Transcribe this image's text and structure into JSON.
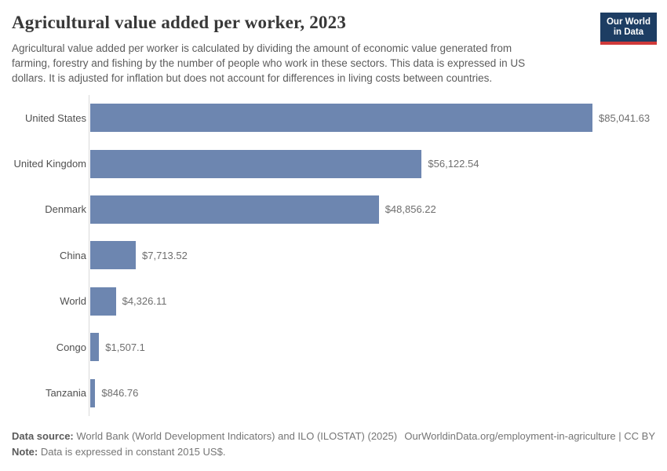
{
  "header": {
    "title": "Agricultural value added per worker, 2023",
    "subtitle_lines": [
      "Agricultural value added per worker is calculated by dividing the amount of economic value generated from",
      "farming, forestry and fishing by the number of people who work in these sectors. This data is expressed in US",
      "dollars. It is adjusted for inflation but does not account for differences in living costs between countries."
    ],
    "logo": {
      "line1": "Our World",
      "line2": "in Data"
    }
  },
  "chart_data": {
    "type": "bar",
    "orientation": "horizontal",
    "title": "Agricultural value added per worker, 2023",
    "categories": [
      "United States",
      "United Kingdom",
      "Denmark",
      "China",
      "World",
      "Congo",
      "Tanzania"
    ],
    "values": [
      85041.63,
      56122.54,
      48856.22,
      7713.52,
      4326.11,
      1507.1,
      846.76
    ],
    "value_labels": [
      "$85,041.63",
      "$56,122.54",
      "$48,856.22",
      "$7,713.52",
      "$4,326.11",
      "$1,507.1",
      "$846.76"
    ],
    "unit": "constant 2015 US$",
    "xlim": [
      0,
      85041.63
    ],
    "grid": false,
    "legend": "none",
    "bar_color": "#6d86b0"
  },
  "footer": {
    "source_label": "Data source:",
    "source_text": "World Bank (World Development Indicators) and ILO (ILOSTAT) (2025)",
    "link_text": "OurWorldinData.org/employment-in-agriculture | CC BY",
    "note_label": "Note:",
    "note_text": "Data is expressed in constant 2015 US$."
  },
  "colors": {
    "bar": "#6d86b0",
    "logo_navy": "#1d3d63",
    "logo_red": "#d03a3a",
    "axis_line": "#dadada",
    "title_text": "#383838",
    "body_text": "#5c5c5c"
  }
}
